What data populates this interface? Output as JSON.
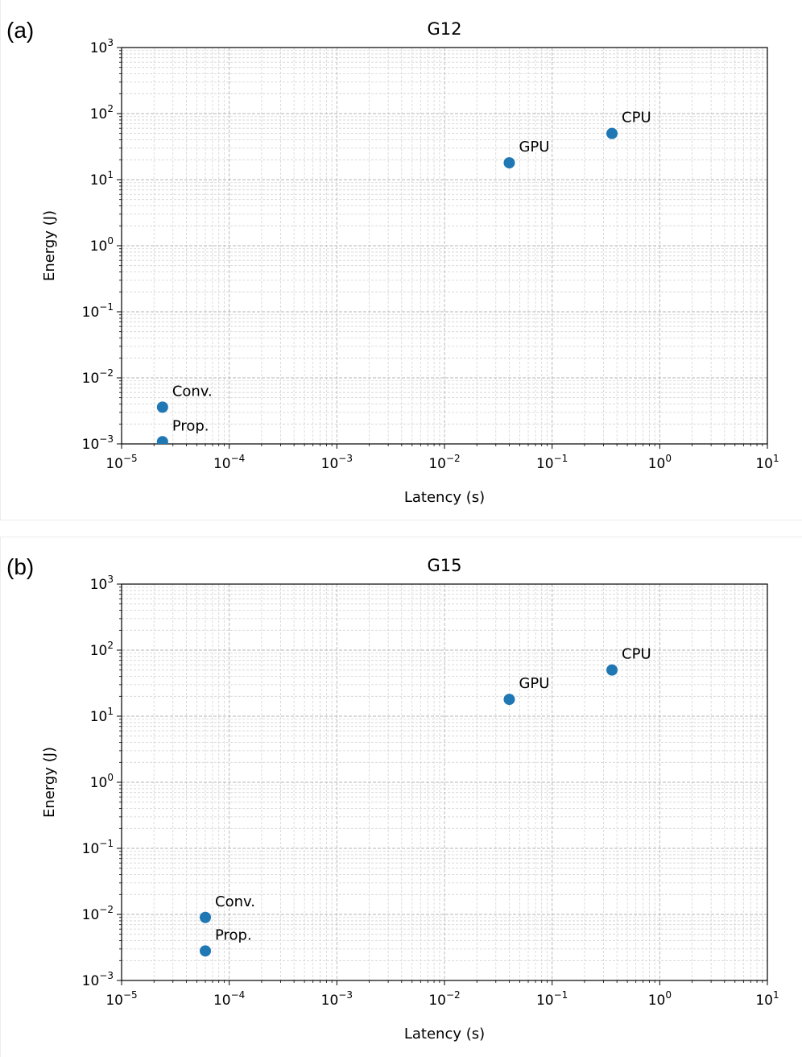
{
  "panels": [
    {
      "label": "(a)"
    },
    {
      "label": "(b)"
    }
  ],
  "chart_data": [
    {
      "type": "scatter",
      "title": "G12",
      "xlabel": "Latency (s)",
      "ylabel": "Energy (J)",
      "xscale": "log",
      "yscale": "log",
      "xlim": [
        1e-05,
        10
      ],
      "ylim": [
        0.001,
        1000
      ],
      "x_ticks": [
        -5,
        -4,
        -3,
        -2,
        -1,
        0,
        1
      ],
      "y_ticks": [
        -3,
        -2,
        -1,
        0,
        1,
        2,
        3
      ],
      "tick_base": "10",
      "grid": true,
      "grid_minor": true,
      "marker_color": "#1f77b4",
      "points": [
        {
          "label": "Conv.",
          "x": 2.4e-05,
          "y": 0.0036
        },
        {
          "label": "Prop.",
          "x": 2.4e-05,
          "y": 0.00108
        },
        {
          "label": "GPU",
          "x": 0.04,
          "y": 18
        },
        {
          "label": "CPU",
          "x": 0.36,
          "y": 50
        }
      ]
    },
    {
      "type": "scatter",
      "title": "G15",
      "xlabel": "Latency (s)",
      "ylabel": "Energy (J)",
      "xscale": "log",
      "yscale": "log",
      "xlim": [
        1e-05,
        10
      ],
      "ylim": [
        0.001,
        1000
      ],
      "x_ticks": [
        -5,
        -4,
        -3,
        -2,
        -1,
        0,
        1
      ],
      "y_ticks": [
        -3,
        -2,
        -1,
        0,
        1,
        2,
        3
      ],
      "tick_base": "10",
      "grid": true,
      "grid_minor": true,
      "marker_color": "#1f77b4",
      "points": [
        {
          "label": "Conv.",
          "x": 6e-05,
          "y": 0.009
        },
        {
          "label": "Prop.",
          "x": 6e-05,
          "y": 0.0028
        },
        {
          "label": "GPU",
          "x": 0.04,
          "y": 18
        },
        {
          "label": "CPU",
          "x": 0.36,
          "y": 50
        }
      ]
    }
  ]
}
